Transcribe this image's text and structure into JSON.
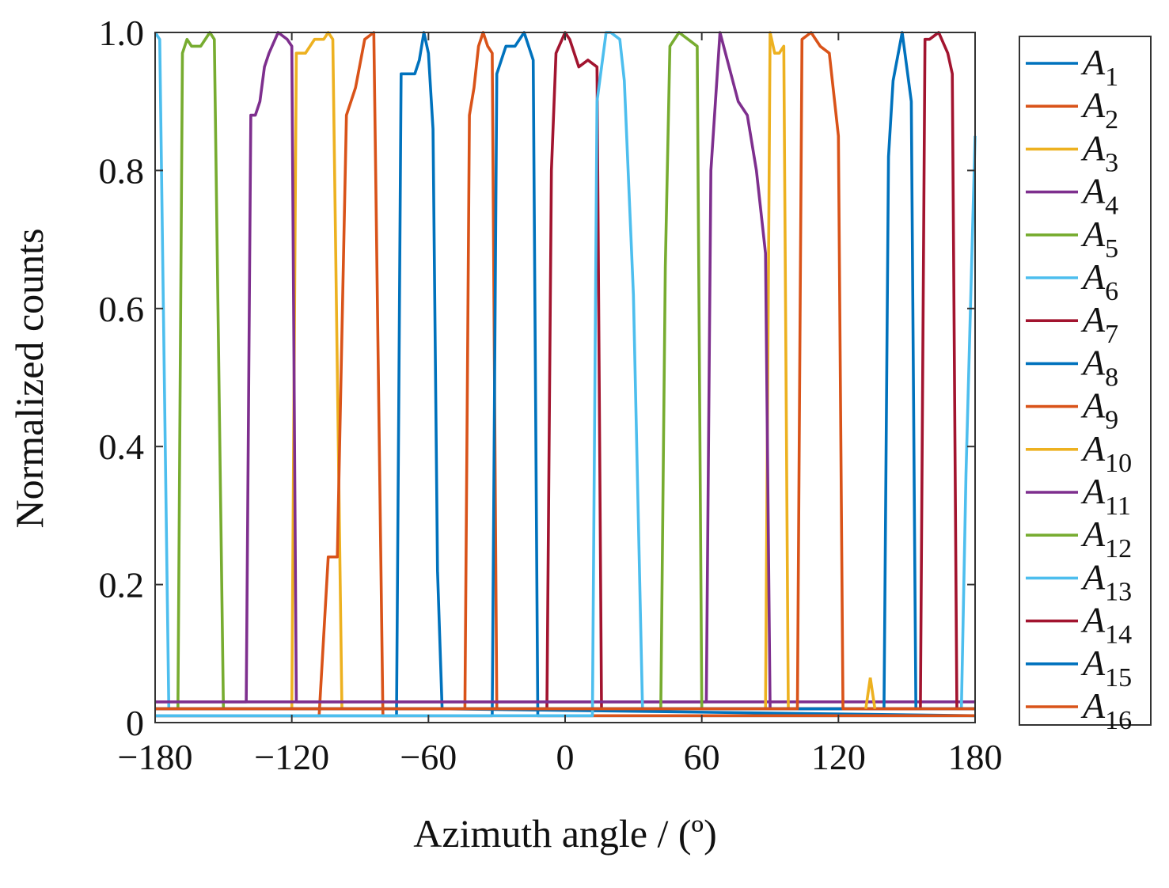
{
  "chart_data": {
    "type": "line",
    "xlabel": "Azimuth angle / (º)",
    "ylabel": "Normalized counts",
    "xlim": [
      -180,
      180
    ],
    "ylim": [
      0,
      1.0
    ],
    "xticks": [
      -180,
      -120,
      -60,
      0,
      60,
      120,
      180
    ],
    "xtick_labels": [
      "−180",
      "−120",
      "−60",
      "0",
      "60",
      "120",
      "180"
    ],
    "yticks": [
      0,
      0.2,
      0.4,
      0.6,
      0.8,
      1.0
    ],
    "ytick_labels": [
      "0",
      "0.2",
      "0.4",
      "0.6",
      "0.8",
      "1.0"
    ],
    "grid": false,
    "legend_position": "right",
    "series": [
      {
        "name": "A1",
        "color": "#0072BD",
        "x": [
          -180,
          -74,
          -72,
          -70,
          -66,
          -64,
          -62,
          -60,
          -58,
          -56,
          -54,
          180
        ],
        "y": [
          0.01,
          0.01,
          0.94,
          0.94,
          0.94,
          0.96,
          1.0,
          0.97,
          0.86,
          0.22,
          0.02,
          0.01
        ]
      },
      {
        "name": "A2",
        "color": "#D95319",
        "x": [
          -180,
          -44,
          -42,
          -40,
          -38,
          -36,
          -34,
          -32,
          -30,
          180
        ],
        "y": [
          0.02,
          0.02,
          0.88,
          0.92,
          0.98,
          1.0,
          0.98,
          0.97,
          0.02,
          0.02
        ]
      },
      {
        "name": "A3",
        "color": "#EDB120",
        "x": [
          -180,
          -120,
          -118,
          -114,
          -110,
          -106,
          -104,
          -102,
          -98,
          -96,
          180
        ],
        "y": [
          0.02,
          0.02,
          0.97,
          0.97,
          0.99,
          0.99,
          1.0,
          0.99,
          0.02,
          0.02,
          0.02
        ]
      },
      {
        "name": "A4",
        "color": "#7E2F8E",
        "x": [
          -180,
          -140,
          -138,
          -136,
          -134,
          -132,
          -130,
          -126,
          -122,
          -120,
          -118,
          180
        ],
        "y": [
          0.03,
          0.03,
          0.88,
          0.88,
          0.9,
          0.95,
          0.97,
          1.0,
          0.99,
          0.98,
          0.03,
          0.03
        ]
      },
      {
        "name": "A5",
        "color": "#77AC30",
        "x": [
          -180,
          -170,
          -168,
          -166,
          -164,
          -160,
          -156,
          -154,
          -150,
          180
        ],
        "y": [
          0.02,
          0.02,
          0.97,
          0.99,
          0.98,
          0.98,
          1.0,
          0.99,
          0.02,
          0.02
        ]
      },
      {
        "name": "A6",
        "color": "#4DBEEE",
        "x": [
          -180,
          -178,
          -174,
          -172,
          -170,
          180
        ],
        "y": [
          1.0,
          0.99,
          0.02,
          0.02,
          0.02,
          0.02
        ]
      },
      {
        "name": "A7",
        "color": "#A2142F",
        "x": [
          -180,
          -8,
          -6,
          -4,
          0,
          2,
          6,
          10,
          14,
          16,
          180
        ],
        "y": [
          0.02,
          0.02,
          0.8,
          0.97,
          1.0,
          0.99,
          0.95,
          0.96,
          0.95,
          0.02,
          0.02
        ]
      },
      {
        "name": "A8",
        "color": "#0072BD",
        "x": [
          -180,
          -32,
          -30,
          -26,
          -22,
          -18,
          -14,
          -12,
          -10,
          180
        ],
        "y": [
          0.01,
          0.01,
          0.94,
          0.98,
          0.98,
          1.0,
          0.96,
          0.01,
          0.01,
          0.01
        ]
      },
      {
        "name": "A9",
        "color": "#D95319",
        "x": [
          -180,
          -108,
          -104,
          -100,
          -96,
          -92,
          -88,
          -84,
          -80,
          -78,
          180
        ],
        "y": [
          0.01,
          0.01,
          0.24,
          0.24,
          0.88,
          0.92,
          0.99,
          1.0,
          0.01,
          0.01,
          0.01
        ]
      },
      {
        "name": "A10",
        "color": "#EDB120",
        "x": [
          -180,
          88,
          90,
          92,
          94,
          96,
          98,
          100,
          102,
          180
        ],
        "y": [
          0.02,
          0.02,
          1.0,
          0.97,
          0.97,
          0.98,
          0.02,
          0.02,
          0.02,
          0.02
        ]
      },
      {
        "name": "A11",
        "color": "#7E2F8E",
        "x": [
          -180,
          62,
          64,
          68,
          72,
          76,
          80,
          84,
          88,
          90,
          92,
          180
        ],
        "y": [
          0.03,
          0.03,
          0.8,
          1.0,
          0.95,
          0.9,
          0.88,
          0.8,
          0.68,
          0.02,
          0.02,
          0.02
        ]
      },
      {
        "name": "A12",
        "color": "#77AC30",
        "x": [
          -180,
          40,
          42,
          44,
          46,
          50,
          54,
          58,
          60,
          62,
          180
        ],
        "y": [
          0.02,
          0.02,
          0.02,
          0.66,
          0.98,
          1.0,
          0.99,
          0.98,
          0.02,
          0.02,
          0.02
        ]
      },
      {
        "name": "A13",
        "color": "#4DBEEE",
        "x": [
          -180,
          12,
          14,
          18,
          20,
          24,
          26,
          30,
          34,
          36,
          174,
          176,
          180
        ],
        "y": [
          0.01,
          0.01,
          0.9,
          1.0,
          1.0,
          0.99,
          0.93,
          0.62,
          0.02,
          0.02,
          0.02,
          0.36,
          0.85
        ]
      },
      {
        "name": "A14",
        "color": "#A2142F",
        "x": [
          -180,
          156,
          158,
          160,
          164,
          168,
          170,
          172,
          180
        ],
        "y": [
          0.02,
          0.02,
          0.99,
          0.99,
          1.0,
          0.97,
          0.94,
          0.02,
          0.02
        ]
      },
      {
        "name": "A15",
        "color": "#0072BD",
        "x": [
          -180,
          136,
          140,
          142,
          144,
          148,
          152,
          154,
          156,
          180
        ],
        "y": [
          0.02,
          0.02,
          0.02,
          0.82,
          0.93,
          1.0,
          0.9,
          0.02,
          0.02,
          0.02
        ]
      },
      {
        "name": "A16",
        "color": "#D95319",
        "x": [
          -180,
          102,
          104,
          108,
          112,
          116,
          120,
          122,
          126,
          180
        ],
        "y": [
          0.02,
          0.02,
          0.99,
          1.0,
          0.98,
          0.97,
          0.85,
          0.02,
          0.02,
          0.02
        ]
      }
    ],
    "annotations": [
      {
        "series": "A10",
        "x": 134,
        "y": 0.065
      }
    ]
  }
}
